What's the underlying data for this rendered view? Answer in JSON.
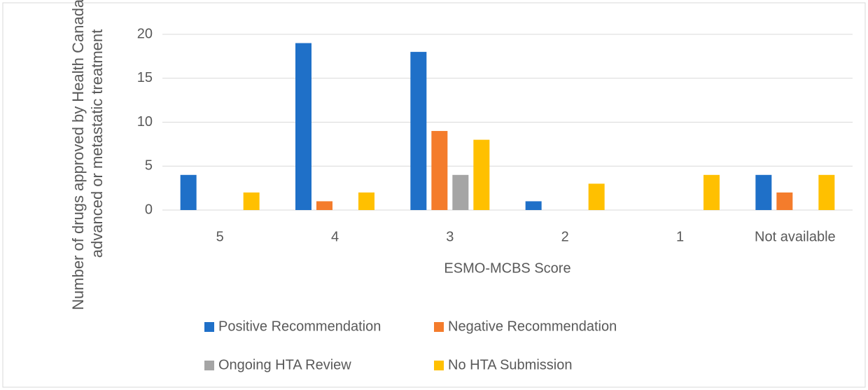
{
  "chart_data": {
    "type": "bar",
    "xlabel": "ESMO-MCBS Score",
    "ylabel": "Number of drugs approved by Health Canada for advanced or metastatic treatment",
    "categories": [
      "5",
      "4",
      "3",
      "2",
      "1",
      "Not available"
    ],
    "series": [
      {
        "name": "Positive Recommendation",
        "color": "#1f70c8",
        "values": [
          4,
          19,
          18,
          1,
          0,
          4
        ]
      },
      {
        "name": "Negative Recommendation",
        "color": "#f47c2c",
        "values": [
          0,
          1,
          9,
          0,
          0,
          2
        ]
      },
      {
        "name": "Ongoing HTA Review",
        "color": "#a5a5a5",
        "values": [
          0,
          0,
          4,
          0,
          0,
          0
        ]
      },
      {
        "name": "No HTA Submission",
        "color": "#ffc000",
        "values": [
          2,
          2,
          8,
          3,
          4,
          4
        ]
      }
    ],
    "ylim": [
      0,
      20
    ],
    "yticks": [
      0,
      5,
      10,
      15,
      20
    ],
    "grid": true
  }
}
